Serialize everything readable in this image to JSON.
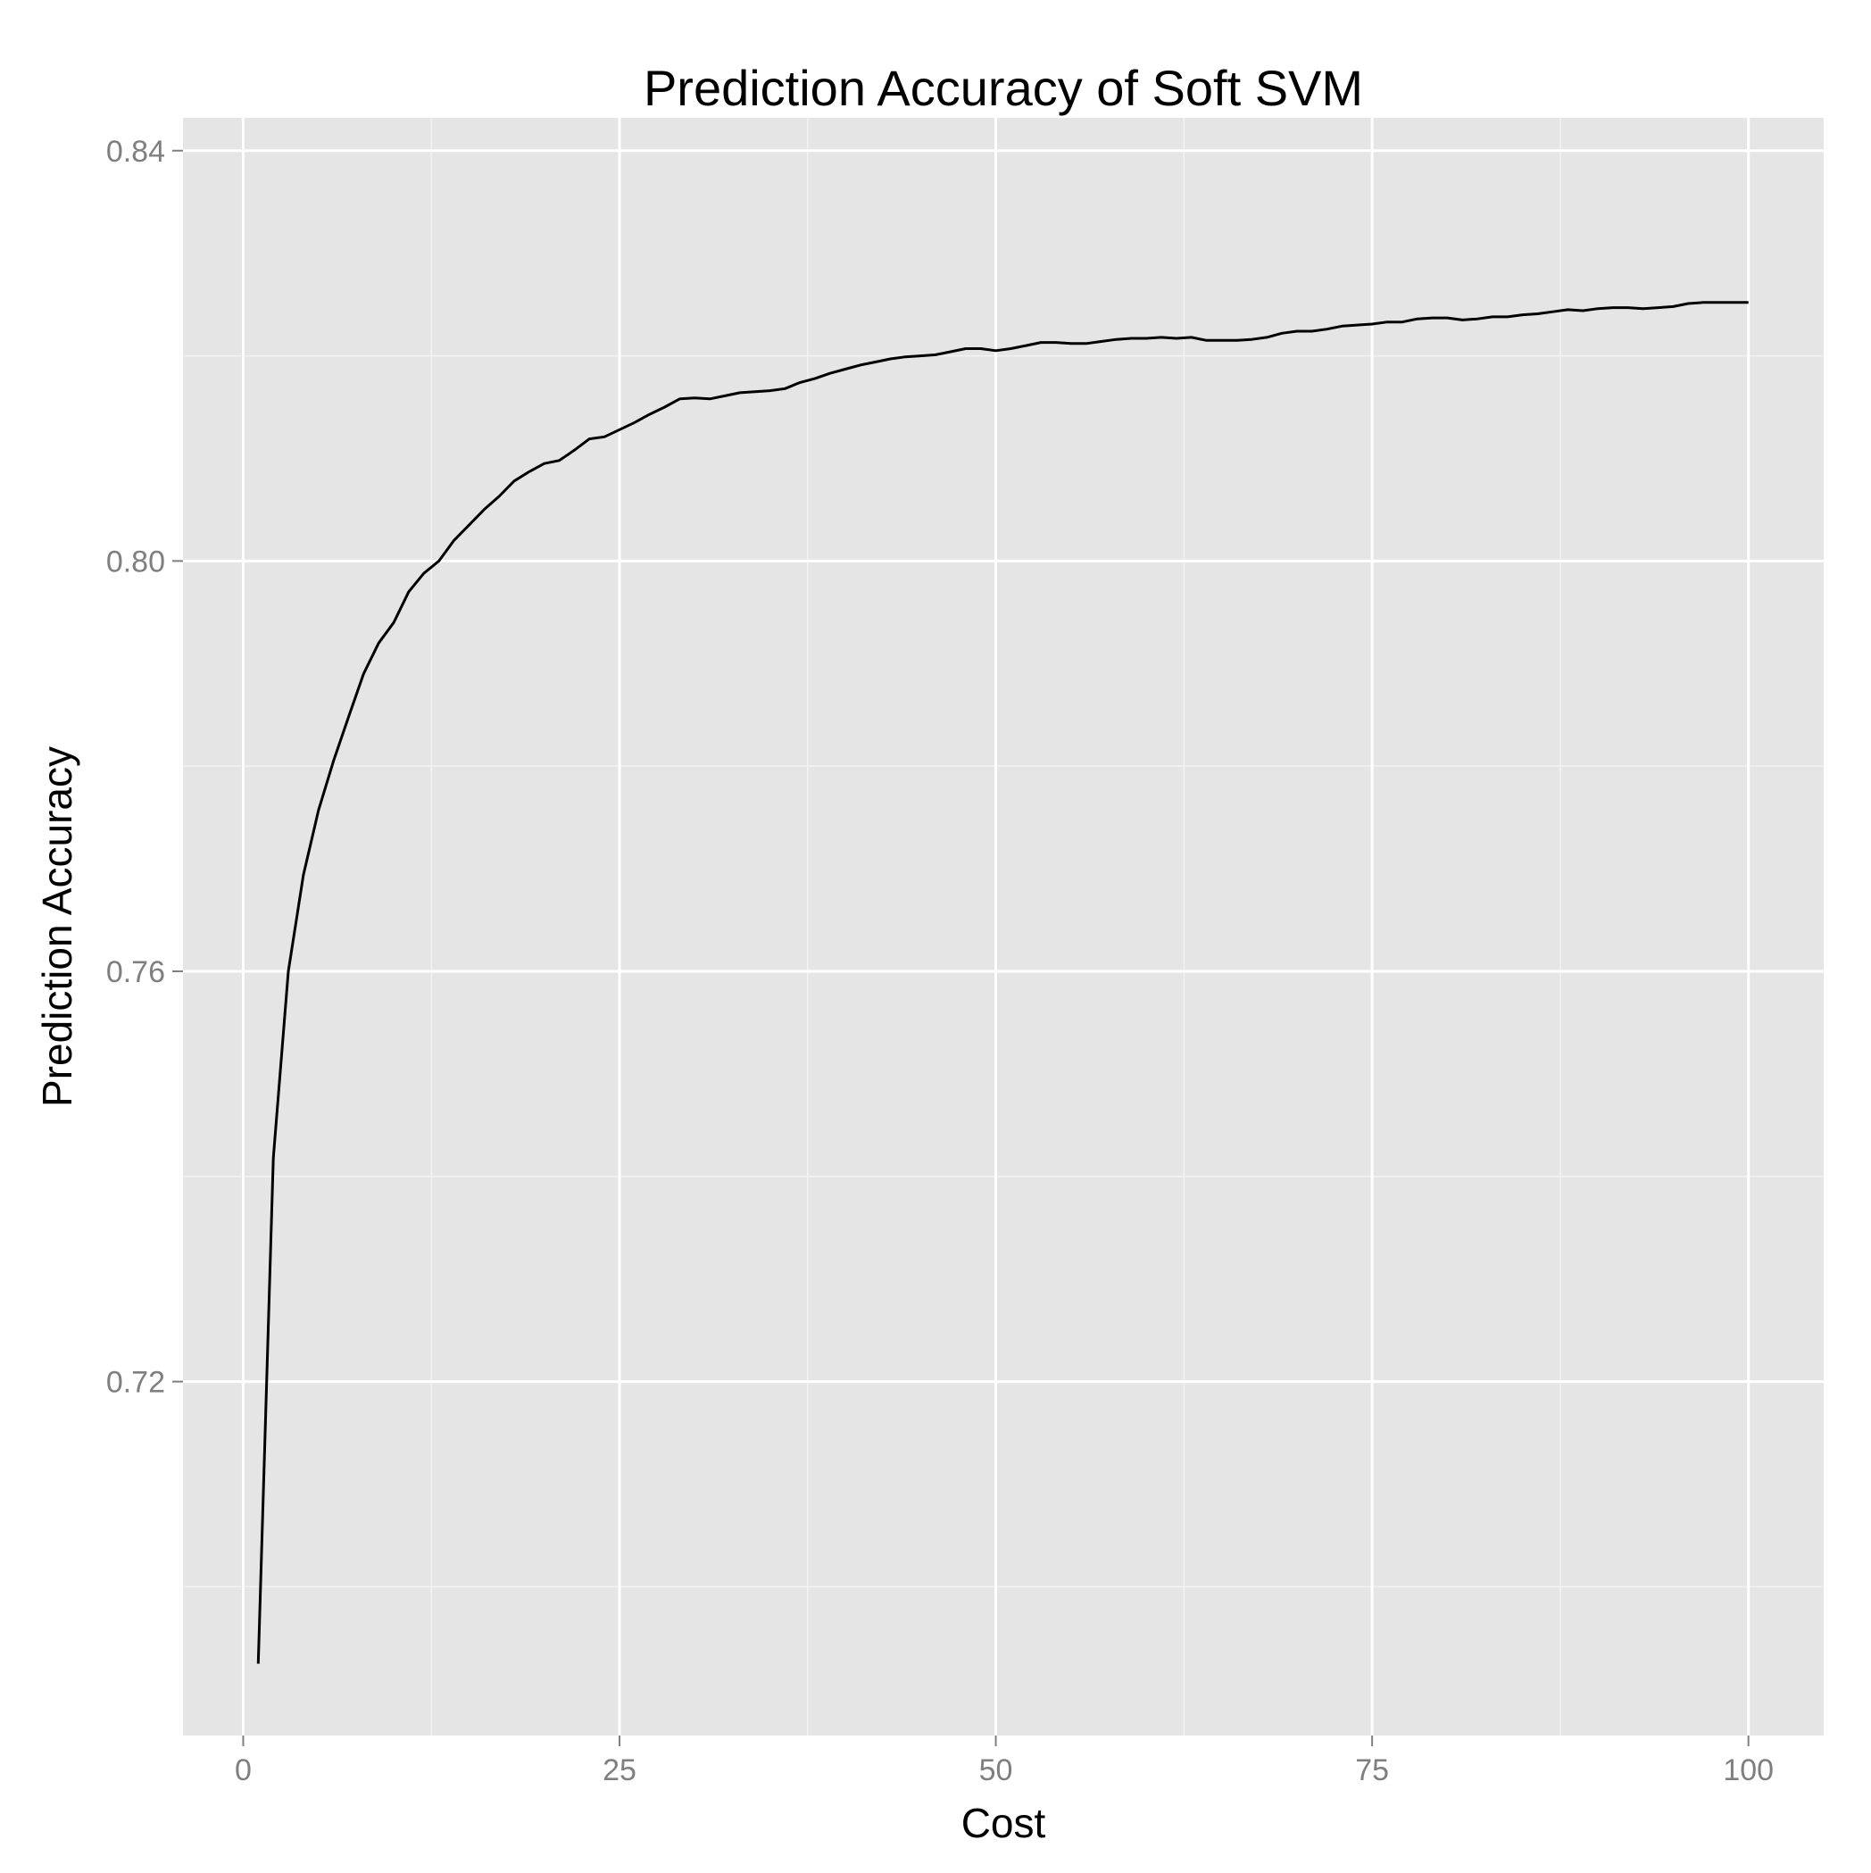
{
  "chart_data": {
    "type": "line",
    "title": "Prediction Accuracy of Soft SVM",
    "xlabel": "Cost",
    "ylabel": "Prediction Accuracy",
    "xlim": [
      -4,
      105
    ],
    "ylim": [
      0.6855,
      0.8432
    ],
    "xticks": [
      0,
      25,
      50,
      75,
      100
    ],
    "xtick_labels": [
      "0",
      "25",
      "50",
      "75",
      "100"
    ],
    "yticks": [
      0.72,
      0.76,
      0.8,
      0.84
    ],
    "ytick_labels": [
      "0.72",
      "0.76",
      "0.80",
      "0.84"
    ],
    "grid": true,
    "legend": "none",
    "colors": {
      "panel": "#e5e5e5",
      "grid_major": "#ffffff",
      "grid_minor": "#f2f2f2",
      "line": "#000000"
    },
    "series": [
      {
        "x": [
          1,
          2,
          3,
          4,
          5,
          6,
          7,
          8,
          9,
          10,
          11,
          12,
          13,
          14,
          15,
          16,
          17,
          18,
          19,
          20,
          21,
          22,
          23,
          24,
          25,
          26,
          27,
          28,
          29,
          30,
          31,
          32,
          33,
          34,
          35,
          36,
          37,
          38,
          39,
          40,
          41,
          42,
          43,
          44,
          45,
          46,
          47,
          48,
          49,
          50,
          51,
          52,
          53,
          54,
          55,
          56,
          57,
          58,
          59,
          60,
          61,
          62,
          63,
          64,
          65,
          66,
          67,
          68,
          69,
          70,
          71,
          72,
          73,
          74,
          75,
          76,
          77,
          78,
          79,
          80,
          81,
          82,
          83,
          84,
          85,
          86,
          87,
          88,
          89,
          90,
          91,
          92,
          93,
          94,
          95,
          96,
          97,
          98,
          99,
          100
        ],
        "y": [
          0.6925,
          0.7418,
          0.76,
          0.7694,
          0.7757,
          0.7805,
          0.7848,
          0.789,
          0.792,
          0.794,
          0.797,
          0.7988,
          0.8,
          0.802,
          0.8035,
          0.805,
          0.8063,
          0.8078,
          0.8087,
          0.8095,
          0.8098,
          0.8108,
          0.8119,
          0.8121,
          0.8128,
          0.8135,
          0.8143,
          0.815,
          0.8158,
          0.8159,
          0.8158,
          0.8161,
          0.8164,
          0.8165,
          0.8166,
          0.8168,
          0.8174,
          0.8178,
          0.8183,
          0.8187,
          0.8191,
          0.8194,
          0.8197,
          0.8199,
          0.82,
          0.8201,
          0.8204,
          0.8207,
          0.8207,
          0.8205,
          0.8207,
          0.821,
          0.8213,
          0.8213,
          0.8212,
          0.8212,
          0.8214,
          0.8216,
          0.8217,
          0.8217,
          0.8218,
          0.8217,
          0.8218,
          0.8215,
          0.8215,
          0.8215,
          0.8216,
          0.8218,
          0.8222,
          0.8224,
          0.8224,
          0.8226,
          0.8229,
          0.823,
          0.8231,
          0.8233,
          0.8233,
          0.8236,
          0.8237,
          0.8237,
          0.8235,
          0.8236,
          0.8238,
          0.8238,
          0.824,
          0.8241,
          0.8243,
          0.8245,
          0.8244,
          0.8246,
          0.8247,
          0.8247,
          0.8246,
          0.8247,
          0.8248,
          0.8251,
          0.8252,
          0.8252,
          0.8252,
          0.8252
        ]
      }
    ]
  }
}
